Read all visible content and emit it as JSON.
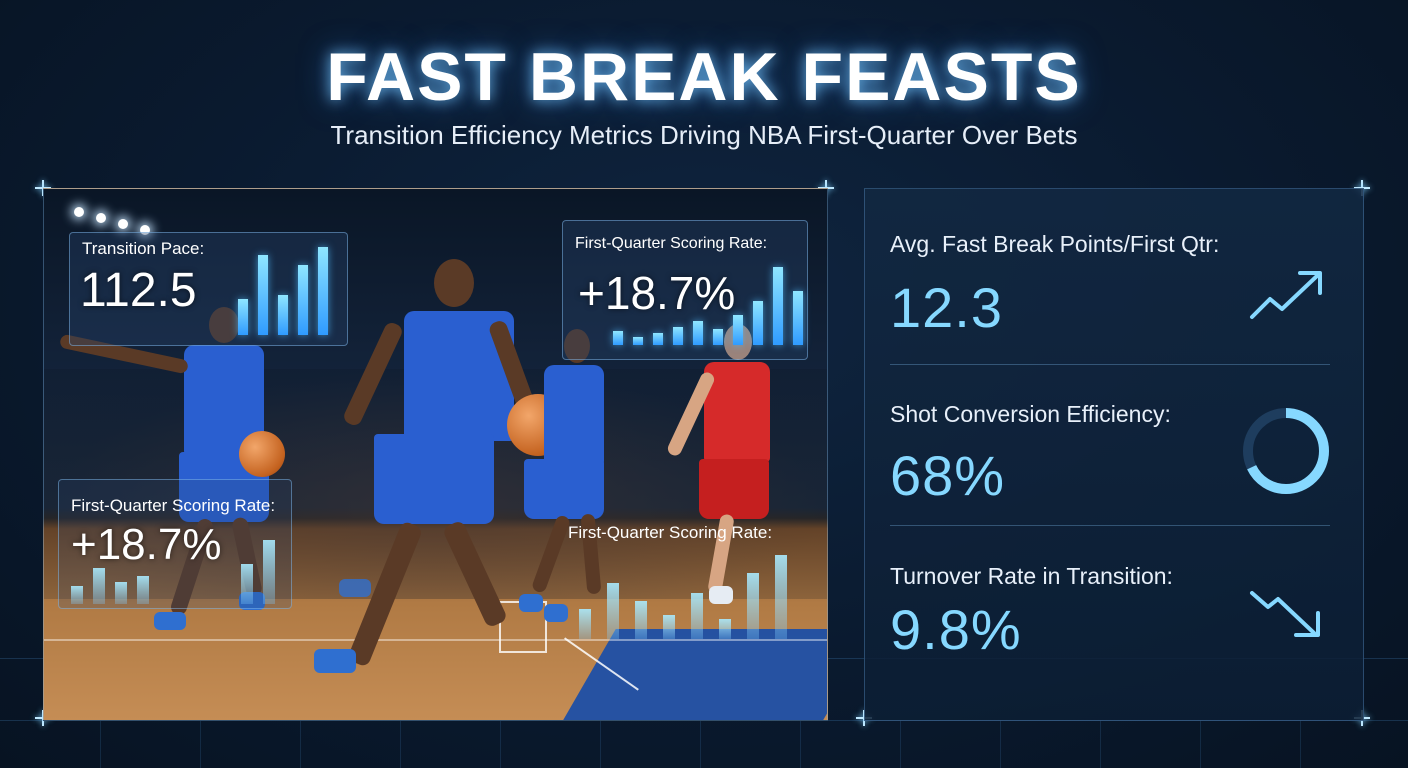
{
  "header": {
    "title": "FAST BREAK FEASTS",
    "subtitle": "Transition Efficiency Metrics Driving NBA First-Quarter Over Bets"
  },
  "overlays": {
    "pace": {
      "label": "Transition Pace:",
      "value": "112.5"
    },
    "scoring_top": {
      "label": "First-Quarter Scoring Rate:",
      "value": "+18.7%"
    },
    "scoring_left": {
      "label": "First-Quarter Scoring Rate:",
      "value": "+18.7%"
    },
    "scoring_bottom": {
      "label": "First-Quarter Scoring Rate:"
    }
  },
  "metrics": [
    {
      "label": "Avg. Fast Break Points/First Qtr:",
      "value": "12.3",
      "icon": "trend-up-icon"
    },
    {
      "label": "Shot Conversion Efficiency:",
      "value": "68%",
      "icon": "donut-ring-icon"
    },
    {
      "label": "Turnover Rate in Transition:",
      "value": "9.8%",
      "icon": "trend-down-icon"
    }
  ],
  "colors": {
    "accent": "#86d8ff",
    "background": "#0a1a2f",
    "home_jersey": "#2a5fd0",
    "away_jersey": "#d62a2a"
  }
}
